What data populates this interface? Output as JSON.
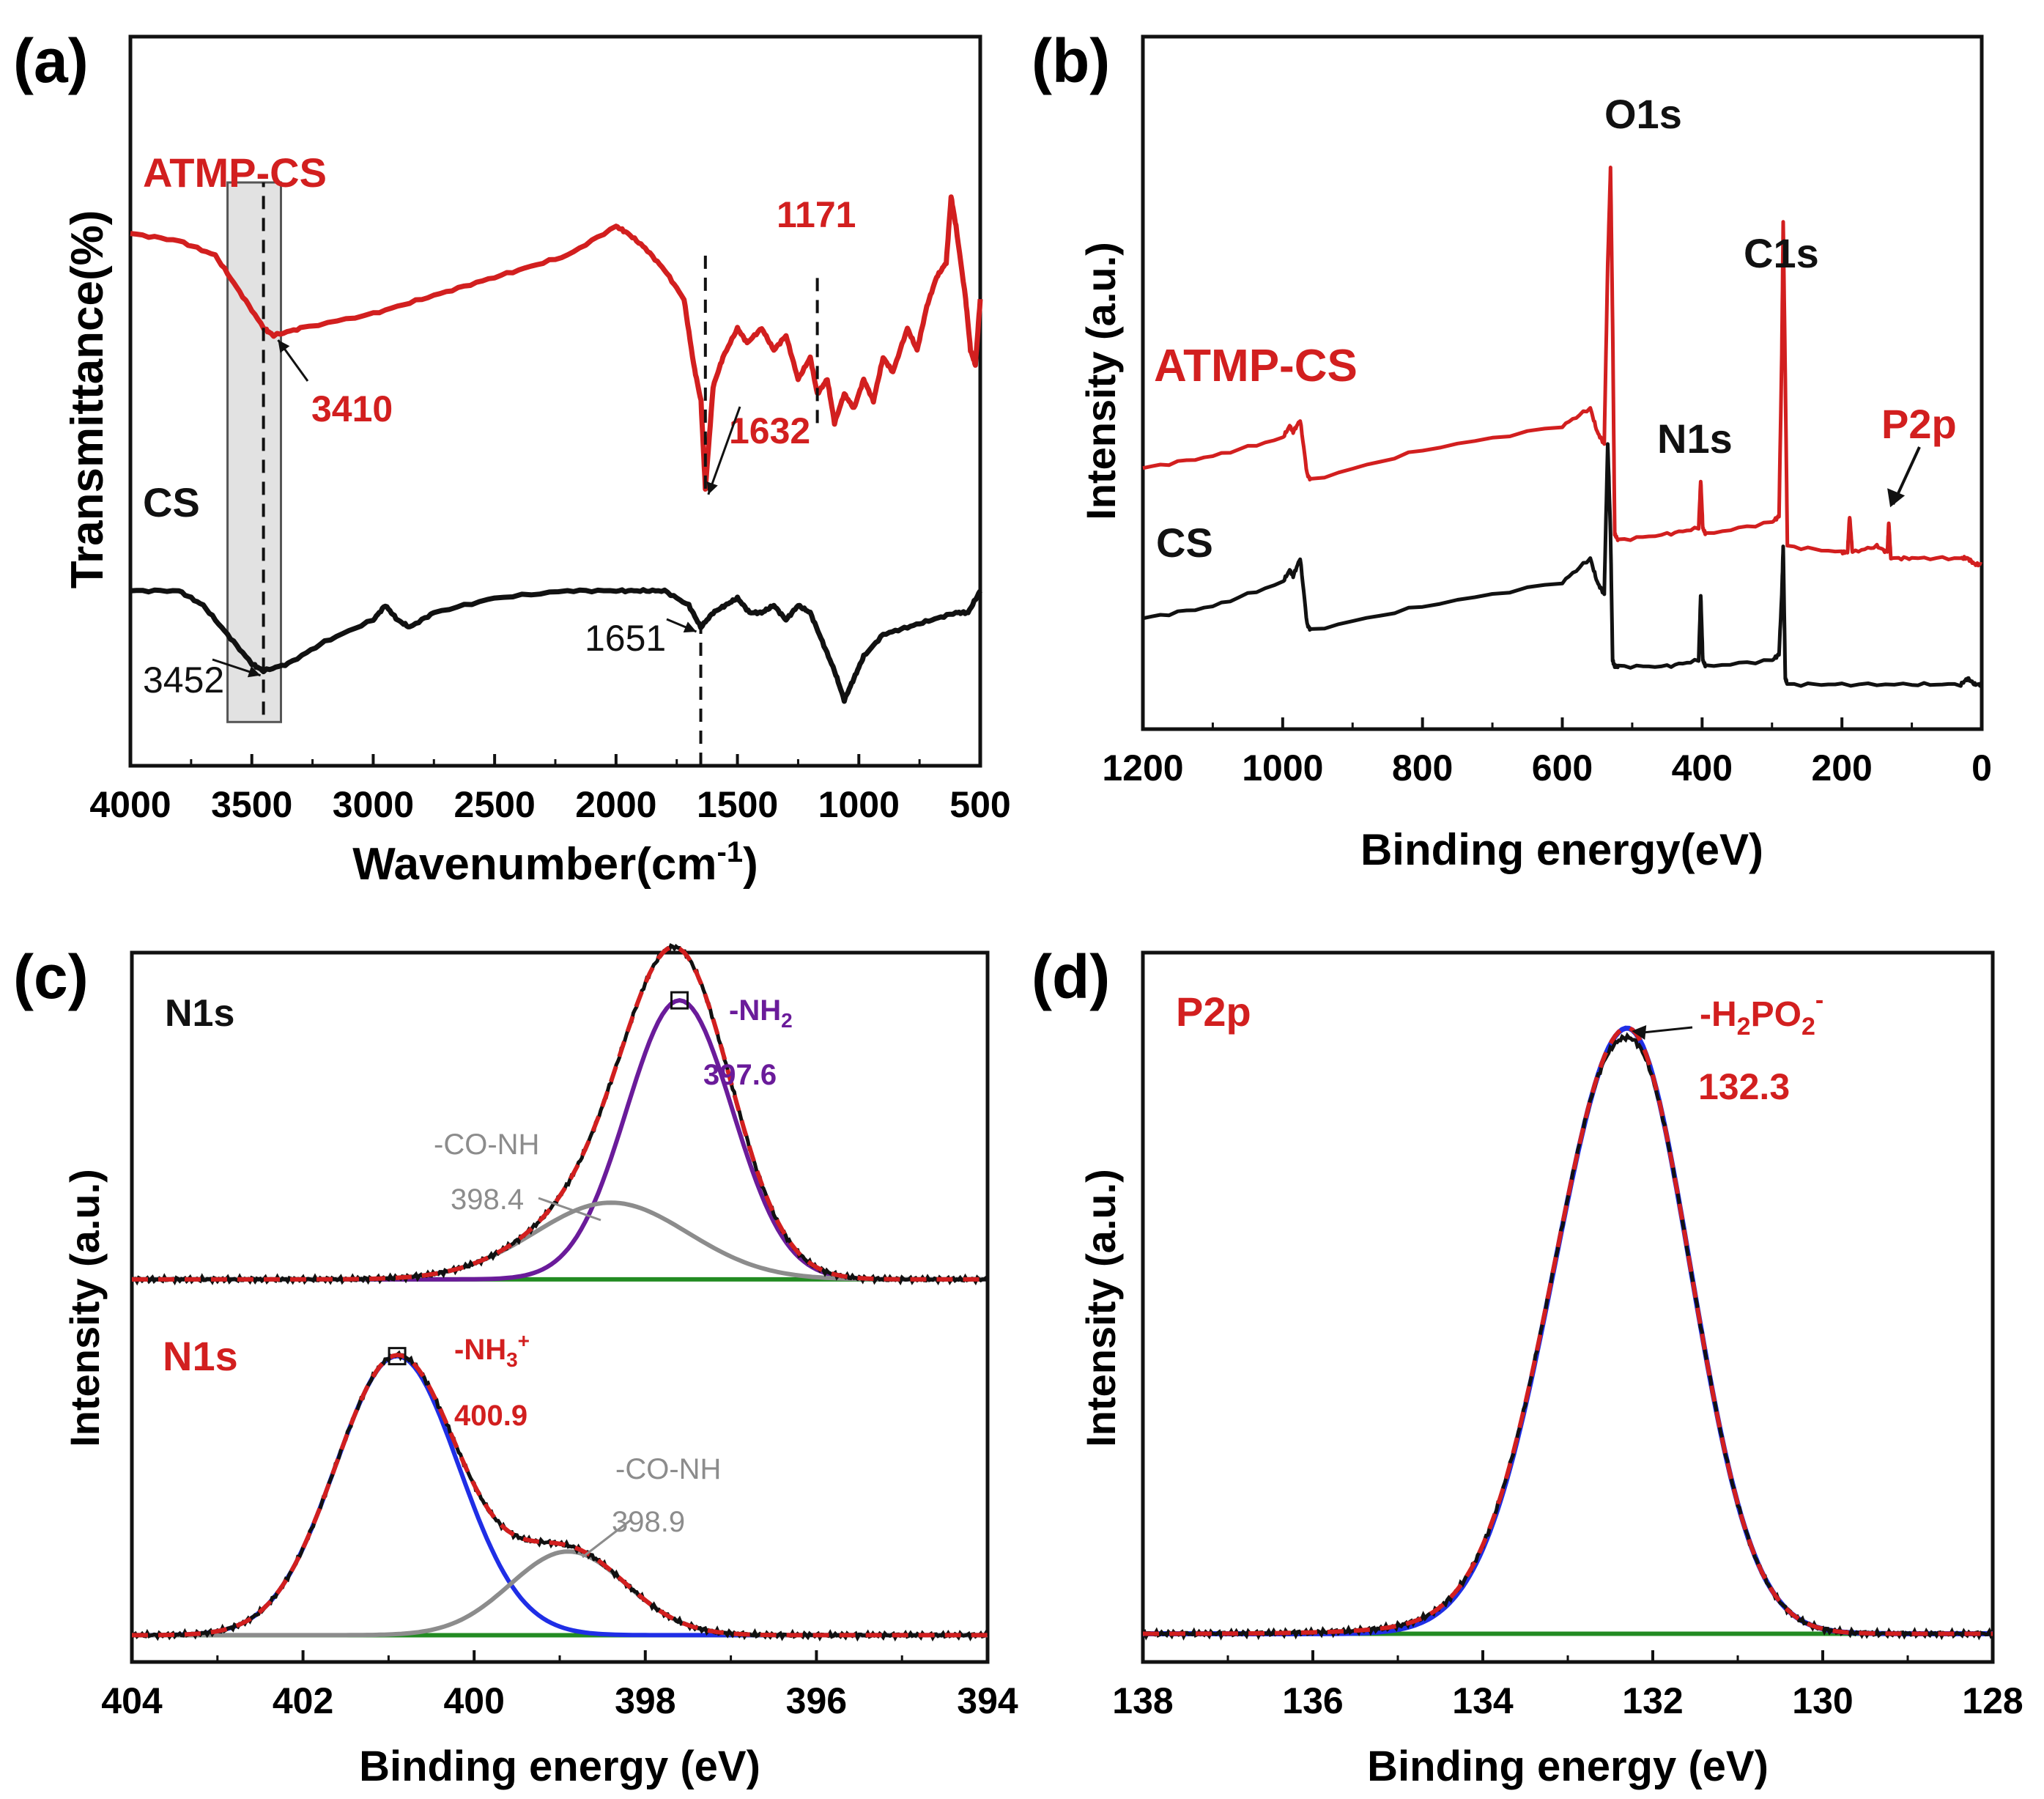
{
  "colors": {
    "black": "#111111",
    "red": "#d21f1f",
    "purple": "#6a1b9a",
    "gray": "#8c8c8c",
    "blue": "#1f2ee6",
    "green": "#228b22",
    "fit": "#d21f1f"
  },
  "chart_data": [
    {
      "id": "a",
      "panel_label": "(a)",
      "type": "line",
      "title": "",
      "xlabel_main": "Wavenumber(cm",
      "xlabel_sup": "-1",
      "xlabel_tail": ")",
      "ylabel": "Transmittance(%)",
      "xlim": [
        4000,
        500
      ],
      "ylim": [
        0,
        100
      ],
      "xticks": [
        4000,
        3500,
        3000,
        2500,
        2000,
        1500,
        1000,
        500
      ],
      "series": [
        {
          "name": "ATMP-CS",
          "color": "red",
          "x": [
            4000,
            3800,
            3650,
            3550,
            3450,
            3410,
            3300,
            3000,
            2800,
            2600,
            2400,
            2200,
            2000,
            1950,
            1880,
            1800,
            1720,
            1680,
            1650,
            1632,
            1600,
            1560,
            1500,
            1460,
            1400,
            1350,
            1300,
            1250,
            1200,
            1171,
            1130,
            1100,
            1060,
            1020,
            980,
            940,
            900,
            860,
            800,
            760,
            720,
            680,
            640,
            620,
            600,
            560,
            540,
            520,
            500
          ],
          "y": [
            73,
            72,
            70,
            65,
            60,
            59,
            60,
            62,
            64,
            66,
            68,
            70,
            74,
            73,
            71,
            68,
            64,
            55,
            50,
            38,
            52,
            56,
            60,
            58,
            60,
            57,
            59,
            53,
            56,
            51,
            53,
            47,
            51,
            49,
            53,
            50,
            56,
            54,
            60,
            57,
            63,
            67,
            69,
            78,
            74,
            64,
            57,
            55,
            64
          ]
        },
        {
          "name": "CS",
          "color": "black",
          "x": [
            4000,
            3800,
            3700,
            3600,
            3500,
            3452,
            3350,
            3200,
            3000,
            2950,
            2900,
            2850,
            2750,
            2500,
            2200,
            2000,
            1900,
            1800,
            1700,
            1651,
            1600,
            1550,
            1500,
            1450,
            1400,
            1350,
            1300,
            1250,
            1200,
            1150,
            1100,
            1060,
            1020,
            980,
            900,
            800,
            700,
            600,
            550,
            500
          ],
          "y": [
            24,
            24,
            22,
            18,
            14,
            13,
            14,
            17,
            20,
            22,
            20,
            19,
            21,
            23,
            24,
            24,
            24,
            24,
            22,
            19,
            21,
            22,
            23,
            21,
            21,
            22,
            20,
            22,
            21,
            17,
            13,
            9,
            12,
            15,
            18,
            19,
            20,
            21,
            21,
            24
          ]
        }
      ],
      "legend": [
        {
          "text": "ATMP-CS",
          "color": "red"
        },
        {
          "text": "CS",
          "color": "black"
        }
      ],
      "annotations": [
        {
          "text": "3410",
          "color": "red",
          "x": 3410
        },
        {
          "text": "1632",
          "color": "red",
          "x": 1632
        },
        {
          "text": "1171",
          "color": "red",
          "x": 1171
        },
        {
          "text": "3452",
          "color": "black",
          "x": 3452
        },
        {
          "text": "1651",
          "color": "black",
          "x": 1651
        }
      ],
      "highlight_box_x": [
        3600,
        3380
      ]
    },
    {
      "id": "b",
      "panel_label": "(b)",
      "type": "line",
      "xlabel": "Binding energy(eV)",
      "ylabel": "Intensity (a.u.)",
      "xlim": [
        1200,
        0
      ],
      "ylim": [
        0,
        100
      ],
      "xticks": [
        1200,
        1000,
        800,
        600,
        400,
        200,
        0
      ],
      "series": [
        {
          "name": "ATMP-CS",
          "color": "red",
          "x": [
            1200,
            1100,
            1000,
            990,
            985,
            975,
            965,
            960,
            800,
            600,
            560,
            550,
            540,
            535,
            531,
            528,
            525,
            520,
            450,
            405,
            402,
            399,
            395,
            300,
            290,
            286,
            284,
            281,
            278,
            200,
            192,
            189,
            185,
            150,
            135,
            133,
            130,
            100,
            30,
            20,
            10,
            0
          ],
          "y": [
            41,
            43,
            46,
            48,
            47,
            49,
            40,
            39,
            44,
            48,
            51,
            47,
            45,
            75,
            91,
            65,
            30,
            29,
            30,
            31,
            39,
            31,
            30,
            32,
            33,
            60,
            82,
            56,
            28,
            27,
            27,
            33,
            27,
            28,
            27,
            32,
            26,
            26,
            26,
            26,
            25,
            25
          ]
        },
        {
          "name": "CS",
          "color": "black",
          "x": [
            1200,
            1100,
            1000,
            990,
            985,
            975,
            965,
            960,
            800,
            600,
            560,
            550,
            540,
            535,
            531,
            528,
            525,
            520,
            450,
            405,
            402,
            399,
            395,
            300,
            290,
            286,
            284,
            281,
            278,
            200,
            100,
            30,
            20,
            10,
            0
          ],
          "y": [
            16,
            18,
            22,
            24,
            23,
            26,
            15,
            14,
            18,
            22,
            26,
            22,
            20,
            45,
            30,
            9,
            8,
            8,
            8,
            9,
            20,
            9,
            8,
            9,
            10,
            20,
            28,
            6,
            5,
            5,
            5,
            5,
            6,
            5,
            5
          ]
        }
      ],
      "legend": [
        {
          "text": "ATMP-CS",
          "color": "red"
        },
        {
          "text": "CS",
          "color": "black"
        }
      ],
      "annotations": [
        {
          "text": "O1s",
          "color": "black"
        },
        {
          "text": "C1s",
          "color": "black"
        },
        {
          "text": "N1s",
          "color": "black"
        },
        {
          "text": "P2p",
          "color": "red"
        }
      ]
    },
    {
      "id": "c",
      "panel_label": "(c)",
      "type": "line",
      "xlabel": "Binding energy (eV)",
      "ylabel": "Intensity (a.u.)",
      "xlim": [
        404,
        394
      ],
      "ylim": [
        0,
        100
      ],
      "xticks": [
        404,
        402,
        400,
        398,
        396,
        394
      ],
      "top_spectrum": {
        "label": "N1s",
        "label_color": "black",
        "baseline": 54,
        "peaks": [
          {
            "center": 397.6,
            "height": 40,
            "sigma": 0.62,
            "color": "purple",
            "label": "-NH",
            "label_sub": "2",
            "value": "397.6"
          },
          {
            "center": 398.4,
            "height": 11,
            "sigma": 0.9,
            "color": "gray",
            "label": "-CO-NH",
            "value": "398.4"
          }
        ]
      },
      "bottom_spectrum": {
        "label": "N1s",
        "label_color": "red",
        "baseline": 3,
        "peaks": [
          {
            "center": 400.9,
            "height": 40,
            "sigma": 0.72,
            "color": "blue",
            "label": "-NH",
            "label_sub": "3",
            "label_sup": "+",
            "value": "400.9"
          },
          {
            "center": 398.9,
            "height": 12,
            "sigma": 0.68,
            "color": "gray",
            "label": "-CO-NH",
            "value": "398.9"
          }
        ]
      }
    },
    {
      "id": "d",
      "panel_label": "(d)",
      "type": "line",
      "xlabel": "Binding energy (eV)",
      "ylabel": "Intensity (a.u.)",
      "xlim": [
        138,
        128
      ],
      "ylim": [
        0,
        100
      ],
      "xticks": [
        138,
        136,
        134,
        132,
        130,
        128
      ],
      "spectrum": {
        "label": "P2p",
        "label_color": "red",
        "baseline": 3,
        "peaks": [
          {
            "center": 132.3,
            "height": 87,
            "sigma": 0.78,
            "color": "blue",
            "label": "-H",
            "label_sub1": "2",
            "label_mid": "PO",
            "label_sub2": "2",
            "label_sup": "-",
            "value": "132.3"
          }
        ]
      }
    }
  ]
}
